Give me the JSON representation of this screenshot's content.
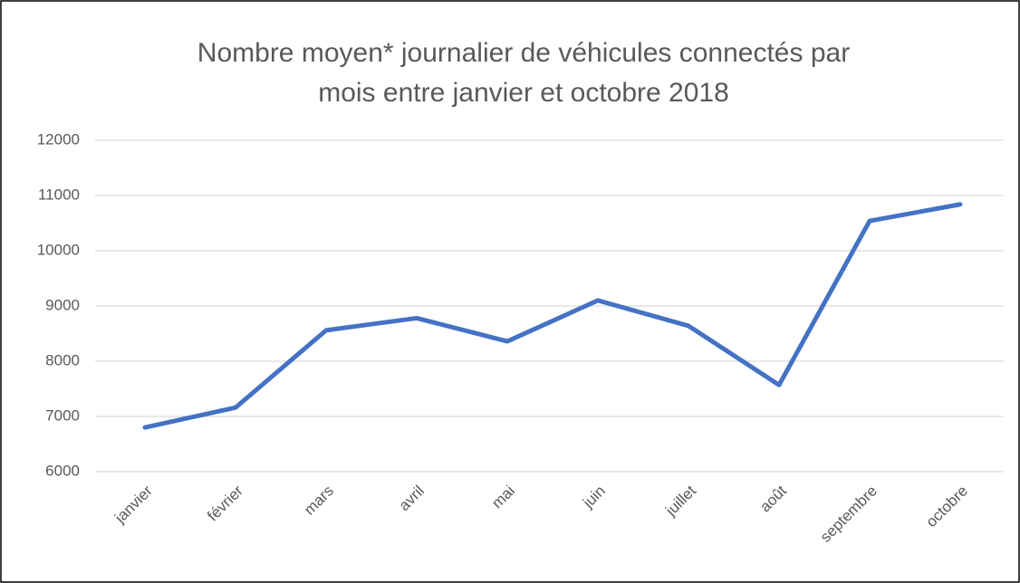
{
  "chart_data": {
    "type": "line",
    "title": [
      "Nombre moyen* journalier de véhicules connectés par",
      "mois entre janvier et octobre 2018"
    ],
    "categories": [
      "janvier",
      "février",
      "mars",
      "avril",
      "mai",
      "juin",
      "juillet",
      "août",
      "septembre",
      "octobre"
    ],
    "series": [
      {
        "color": "#4472c4",
        "values": [
          6800,
          7160,
          8560,
          8780,
          8360,
          9100,
          8640,
          7570,
          10540,
          10840
        ]
      }
    ],
    "ylim": [
      6000,
      12000
    ],
    "yticks": [
      6000,
      7000,
      8000,
      9000,
      10000,
      11000,
      12000
    ],
    "grid": true
  }
}
